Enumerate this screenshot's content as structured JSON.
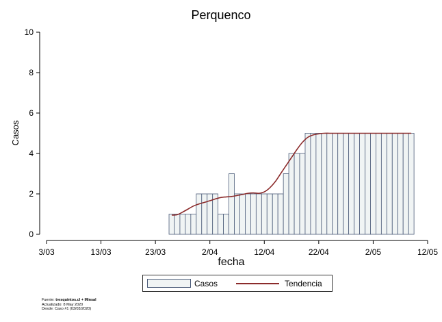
{
  "chart_data": {
    "type": "bar",
    "title": "Perquenco",
    "xlabel": "fecha",
    "ylabel": "Casos",
    "ylim": [
      0,
      10
    ],
    "yticks": [
      "0",
      "2",
      "4",
      "6",
      "8",
      "10"
    ],
    "xlim": [
      "2020-03-03",
      "2020-05-12"
    ],
    "xticks": [
      "3/03",
      "13/03",
      "23/03",
      "2/04",
      "12/04",
      "22/04",
      "2/05",
      "12/05"
    ],
    "x_start": "2020-03-26",
    "series": [
      {
        "name": "Casos",
        "type": "bar",
        "values": [
          1,
          1,
          1,
          1,
          1,
          2,
          2,
          2,
          2,
          1,
          1,
          3,
          2,
          2,
          2,
          2,
          2,
          2,
          2,
          2,
          2,
          3,
          4,
          4,
          4,
          5,
          5,
          5,
          5,
          5,
          5,
          5,
          5,
          5,
          5,
          5,
          5,
          5,
          5,
          5,
          5,
          5,
          5,
          5,
          5
        ]
      },
      {
        "name": "Tendencia",
        "type": "line",
        "values": [
          0.95,
          0.97,
          1.1,
          1.25,
          1.4,
          1.5,
          1.58,
          1.66,
          1.75,
          1.82,
          1.85,
          1.87,
          1.92,
          1.97,
          2.03,
          2.05,
          2.03,
          2.1,
          2.3,
          2.6,
          3.0,
          3.4,
          3.8,
          4.2,
          4.55,
          4.8,
          4.92,
          4.97,
          5,
          5,
          5,
          5,
          5,
          5,
          5,
          5,
          5,
          5,
          5,
          5,
          5,
          5,
          5,
          5,
          5
        ]
      }
    ],
    "legend": "bottom",
    "grid": false
  },
  "legend": {
    "casos": "Casos",
    "tendencia": "Tendencia"
  },
  "footer": {
    "fuente_prefix": "Fuente: ",
    "fuente_bold": "tresquintos.cl + Minsal",
    "actualizado": "Actualizado: 8 May 2020",
    "desde": "Desde: Caso #1  (03/03/2020)"
  },
  "colors": {
    "bar_fill": "#f0f4f4",
    "bar_stroke": "#4a5a78",
    "trend": "#8b2b2b"
  }
}
